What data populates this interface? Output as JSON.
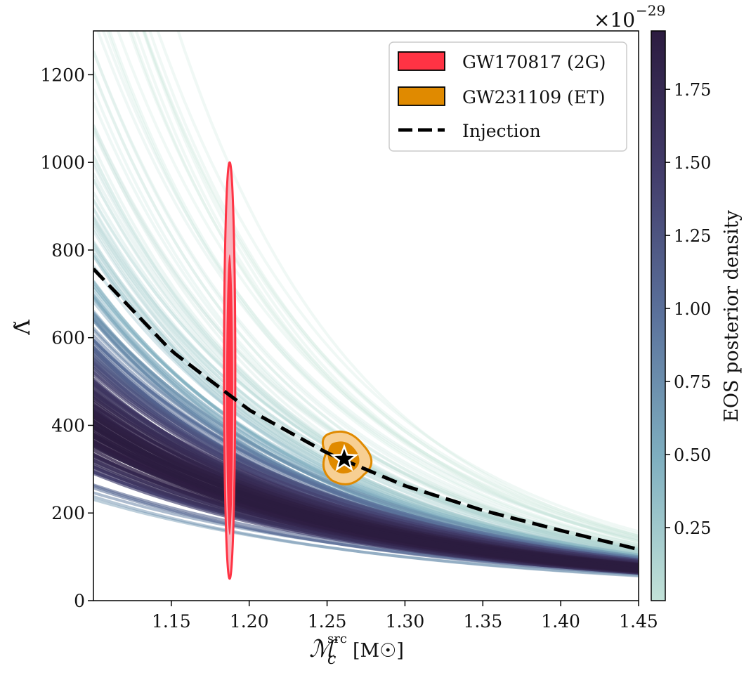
{
  "chart_data": {
    "type": "line",
    "xlabel_main": "ℳ",
    "xlabel_sub": "c",
    "xlabel_sup": "src",
    "xlabel_unit": "[M☉]",
    "ylabel": "Λ̃",
    "xlim": [
      1.1,
      1.45
    ],
    "ylim": [
      0,
      1300
    ],
    "xticks": [
      1.15,
      1.2,
      1.25,
      1.3,
      1.35,
      1.4,
      1.45
    ],
    "xtick_labels": [
      "1.15",
      "1.20",
      "1.25",
      "1.30",
      "1.35",
      "1.40",
      "1.45"
    ],
    "yticks": [
      0,
      200,
      400,
      600,
      800,
      1000,
      1200
    ],
    "ytick_labels": [
      "0",
      "200",
      "400",
      "600",
      "800",
      "1000",
      "1200"
    ],
    "injection": {
      "name": "Injection",
      "x": [
        1.1,
        1.15,
        1.2,
        1.25,
        1.3,
        1.35,
        1.4,
        1.45
      ],
      "y": [
        757,
        570,
        435,
        337,
        262,
        206,
        160,
        117
      ]
    },
    "injection_point": {
      "x": 1.261,
      "y": 323
    },
    "eos_band": {
      "center_y_at_xmin": 390,
      "center_y_at_xmax": 75,
      "n_curves": 200
    },
    "regions": [
      {
        "name": "GW170817 (2G)",
        "color": "#ff3344",
        "light_color": "#f8b4bd",
        "x_center": 1.187,
        "y_range": [
          50,
          1000
        ]
      },
      {
        "name": "GW231109 (ET)",
        "color": "#e08a00",
        "light_color": "#f7cf93",
        "x_center": 1.261,
        "y_center": 323
      }
    ],
    "legend": [
      "GW170817 (2G)",
      "GW231109 (ET)",
      "Injection"
    ],
    "legend_position": "top-right",
    "colorbar": {
      "label": "EOS posterior density",
      "ticks": [
        0.25,
        0.5,
        0.75,
        1.0,
        1.25,
        1.5,
        1.75
      ],
      "tick_labels": [
        "0.25",
        "0.50",
        "0.75",
        "1.00",
        "1.25",
        "1.50",
        "1.75"
      ],
      "range": [
        0,
        1.95
      ],
      "offset_base": "×10",
      "offset_exp": "−29",
      "colors": [
        "#c2e2d8",
        "#7fafc0",
        "#5b729c",
        "#433d6b",
        "#2c1c40"
      ]
    }
  }
}
